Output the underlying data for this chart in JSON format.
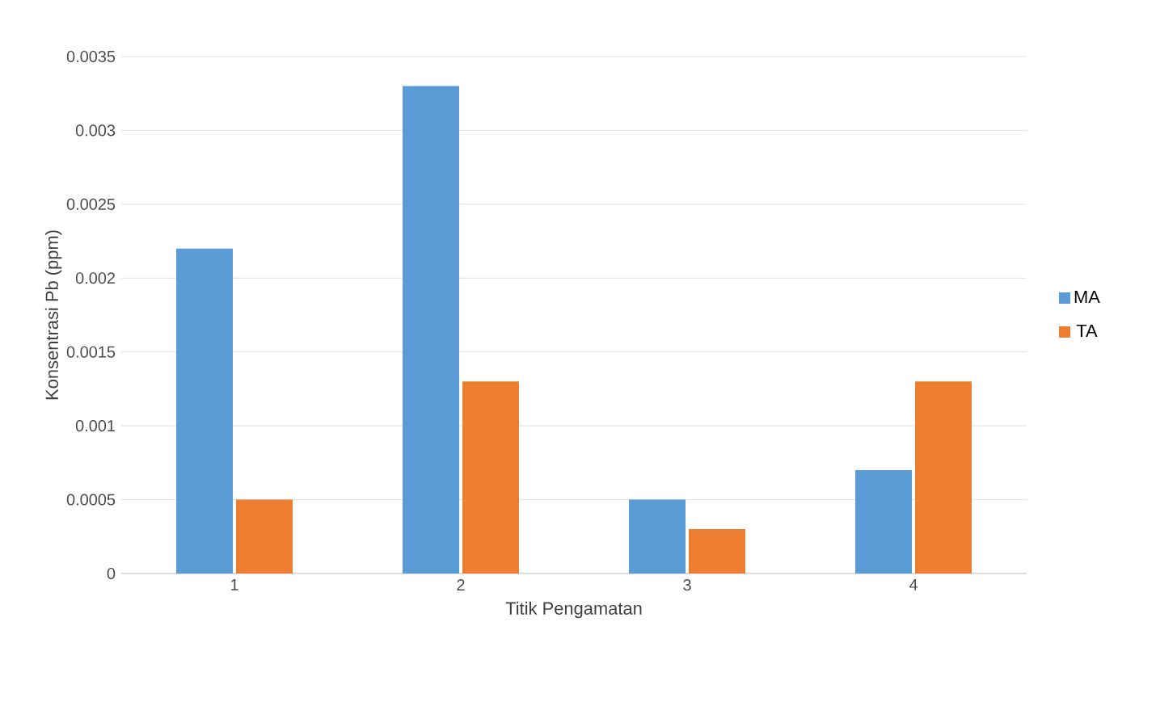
{
  "chart_data": {
    "type": "bar",
    "xlabel": "Titik Pengamatan",
    "ylabel": "Konsentrasi Pb (ppm)",
    "categories": [
      "1",
      "2",
      "3",
      "4"
    ],
    "series": [
      {
        "name": "MA",
        "color": "#5b9bd5",
        "values": [
          0.0022,
          0.0033,
          0.0005,
          0.0007
        ]
      },
      {
        "name": "TA",
        "color": "#ed7d31",
        "values": [
          0.0005,
          0.0013,
          0.0003,
          0.0013
        ]
      }
    ],
    "ylim": [
      0,
      0.0035
    ],
    "yticks": [
      0,
      0.0005,
      0.001,
      0.0015,
      0.002,
      0.0025,
      0.003,
      0.0035
    ],
    "grid": "y",
    "legend": "right"
  }
}
